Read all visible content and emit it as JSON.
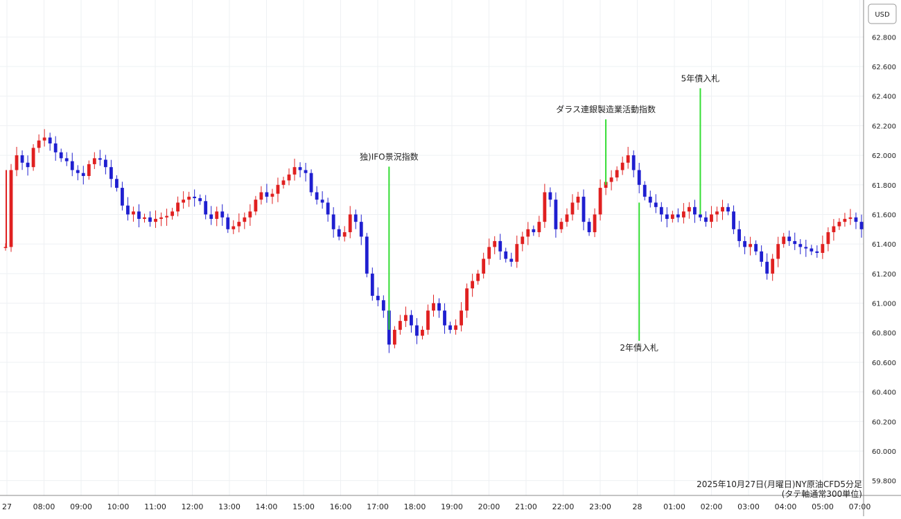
{
  "chart_data": {
    "type": "candlestick",
    "currency_label": "USD",
    "caption_line1": "2025年10月27日(月曜日)NY原油CFD5分足",
    "caption_line2": "(タテ軸通常300単位)",
    "ylim": [
      59.7,
      63.05
    ],
    "y_ticks": [
      "62.800",
      "62.600",
      "62.400",
      "62.200",
      "62.000",
      "61.800",
      "61.600",
      "61.400",
      "61.200",
      "61.000",
      "60.800",
      "60.600",
      "60.400",
      "60.200",
      "60.000",
      "59.800"
    ],
    "x_ticks": [
      "27",
      "08:00",
      "09:00",
      "10:00",
      "11:00",
      "12:00",
      "13:00",
      "14:00",
      "15:00",
      "16:00",
      "17:00",
      "18:00",
      "19:00",
      "20:00",
      "21:00",
      "22:00",
      "23:00",
      "28",
      "01:00",
      "02:00",
      "03:00",
      "04:00",
      "05:00",
      "07:00"
    ],
    "up_color": "#e02020",
    "down_color": "#1f1fd0",
    "annotation_color": "#33dd33",
    "closes": [
      61.38,
      61.9,
      62.0,
      61.95,
      61.92,
      62.05,
      62.1,
      62.12,
      62.08,
      62.02,
      61.98,
      61.96,
      61.9,
      61.88,
      61.86,
      61.94,
      61.98,
      61.97,
      61.92,
      61.84,
      61.78,
      61.66,
      61.6,
      61.62,
      61.57,
      61.58,
      61.55,
      61.57,
      61.58,
      61.59,
      61.62,
      61.68,
      61.7,
      61.72,
      61.71,
      61.69,
      61.6,
      61.57,
      61.62,
      61.58,
      61.5,
      61.52,
      61.55,
      61.58,
      61.62,
      61.7,
      61.75,
      61.72,
      61.74,
      61.8,
      61.83,
      61.87,
      61.92,
      61.9,
      61.88,
      61.75,
      61.7,
      61.68,
      61.6,
      61.5,
      61.45,
      61.48,
      61.6,
      61.55,
      61.45,
      61.2,
      61.05,
      61.02,
      60.95,
      60.72,
      60.82,
      60.88,
      60.92,
      60.85,
      60.78,
      60.82,
      60.95,
      61.0,
      60.95,
      60.85,
      60.82,
      60.85,
      60.95,
      61.1,
      61.15,
      61.2,
      61.3,
      61.38,
      61.42,
      61.35,
      61.3,
      61.28,
      61.4,
      61.45,
      61.5,
      61.48,
      61.55,
      61.75,
      61.7,
      61.5,
      61.55,
      61.6,
      61.68,
      61.72,
      61.55,
      61.48,
      61.6,
      61.78,
      61.82,
      61.85,
      61.9,
      61.95,
      62.0,
      61.9,
      61.8,
      61.72,
      61.68,
      61.65,
      61.6,
      61.57,
      61.6,
      61.58,
      61.62,
      61.65,
      61.6,
      61.58,
      61.55,
      61.6,
      61.62,
      61.65,
      61.62,
      61.5,
      61.42,
      61.38,
      61.4,
      61.35,
      61.28,
      61.2,
      61.3,
      61.4,
      61.45,
      61.42,
      61.4,
      61.38,
      61.37,
      61.35,
      61.34,
      61.4,
      61.48,
      61.52,
      61.55,
      61.57,
      61.58,
      61.55,
      61.5
    ]
  },
  "annotations": [
    {
      "label": "独)IFO景況指数",
      "x_index": 69,
      "y": 60.82,
      "label_y": 61.97
    },
    {
      "label": "ダラス連銀製造業活動指数",
      "x_index": 108,
      "y": 61.8,
      "label_y": 62.29
    },
    {
      "label": "5年債入札",
      "x_index": 125,
      "y": 61.6,
      "label_y": 62.5
    },
    {
      "label": "2年債入札",
      "x_index": 114,
      "y": 61.68,
      "label_y": 60.68
    }
  ]
}
